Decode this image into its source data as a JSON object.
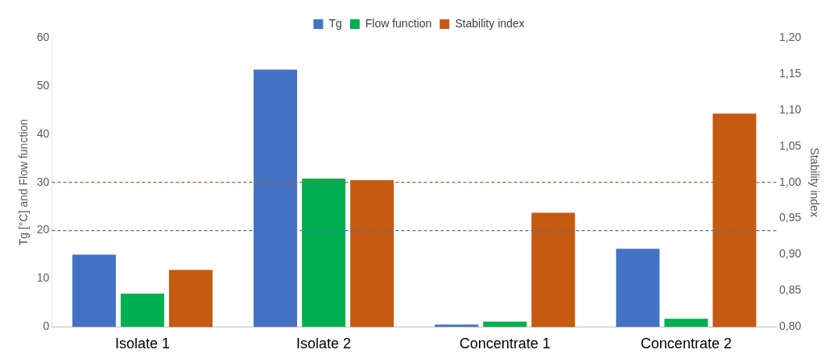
{
  "chart_data": {
    "type": "bar",
    "ylabel": "Tg [°C] and Flow function",
    "y2label": "Stability index",
    "categories": [
      "Isolate 1",
      "Isolate 2",
      "Concentrate 1",
      "Concentrate 2"
    ],
    "series": [
      {
        "name": "Tg",
        "color": "#4472c4",
        "values": [
          15.0,
          53.4,
          0.5,
          16.2
        ]
      },
      {
        "name": "Flow function",
        "color": "#00b050",
        "values": [
          6.9,
          30.8,
          1.1,
          1.7
        ]
      },
      {
        "name": "Stability index",
        "color": "#c55a11",
        "axis": "y2",
        "values": [
          0.879,
          1.003,
          0.958,
          1.095
        ]
      }
    ],
    "ylim": [
      0,
      60
    ],
    "yticks": [
      0,
      10,
      20,
      30,
      40,
      50,
      60
    ],
    "y2lim": [
      0.8,
      1.2
    ],
    "y2ticks": [
      {
        "value": 0.8,
        "label": "0,80"
      },
      {
        "value": 0.85,
        "label": "0,85"
      },
      {
        "value": 0.9,
        "label": "0,90"
      },
      {
        "value": 0.95,
        "label": "0,95"
      },
      {
        "value": 1.0,
        "label": "1,00"
      },
      {
        "value": 1.05,
        "label": "1,05"
      },
      {
        "value": 1.1,
        "label": "1,10"
      },
      {
        "value": 1.15,
        "label": "1,15"
      },
      {
        "value": 1.2,
        "label": "1,20"
      }
    ],
    "ref_lines": [
      {
        "axis": "y",
        "value": 20,
        "color": "#4472c4",
        "line_style": "dashed"
      },
      {
        "axis": "y2",
        "value": 1.0,
        "color": "#c55a11",
        "line_style": "dashed"
      }
    ],
    "grid": false,
    "legend": "top"
  }
}
